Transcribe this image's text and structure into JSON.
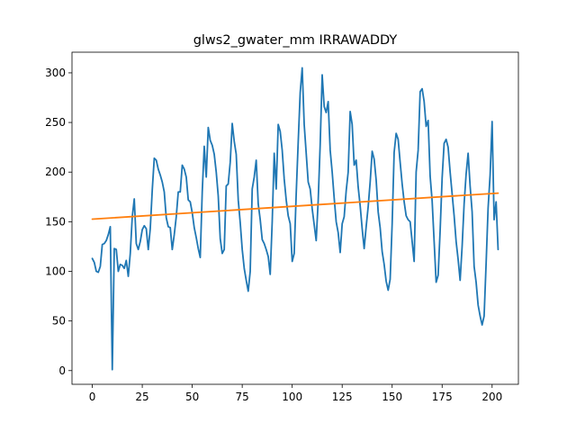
{
  "chart_data": {
    "type": "line",
    "title": "glws2_gwater_mm IRRAWADDY",
    "xlabel": "",
    "ylabel": "",
    "xlim": [
      -10.15,
      213.15
    ],
    "ylim": [
      -13.8,
      320.8
    ],
    "xticks": [
      0,
      25,
      50,
      75,
      100,
      125,
      150,
      175,
      200
    ],
    "yticks": [
      0,
      50,
      100,
      150,
      200,
      250,
      300
    ],
    "grid": false,
    "legend": "none",
    "series": [
      {
        "color": "#1f77b4",
        "x_start": 0,
        "values": [
          113,
          109,
          100,
          99,
          105,
          127,
          128,
          131,
          137,
          145,
          1,
          123,
          122,
          100,
          107,
          106,
          103,
          111,
          95,
          118,
          155,
          173,
          128,
          122,
          130,
          142,
          146,
          143,
          122,
          143,
          182,
          214,
          212,
          203,
          197,
          190,
          180,
          154,
          145,
          144,
          122,
          137,
          155,
          180,
          180,
          207,
          203,
          195,
          172,
          170,
          159,
          144,
          134,
          123,
          114,
          180,
          226,
          195,
          245,
          232,
          227,
          218,
          200,
          176,
          133,
          118,
          122,
          186,
          188,
          210,
          249,
          231,
          218,
          172,
          149,
          122,
          103,
          91,
          80,
          100,
          183,
          195,
          212,
          168,
          152,
          132,
          128,
          122,
          115,
          97,
          150,
          219,
          183,
          248,
          241,
          222,
          193,
          172,
          156,
          148,
          110,
          118,
          178,
          230,
          280,
          305,
          248,
          219,
          190,
          183,
          163,
          147,
          131,
          171,
          228,
          298,
          266,
          260,
          271,
          222,
          200,
          174,
          150,
          139,
          119,
          148,
          155,
          181,
          200,
          261,
          248,
          207,
          212,
          185,
          166,
          143,
          123,
          145,
          165,
          190,
          221,
          213,
          192,
          160,
          144,
          120,
          107,
          90,
          81,
          92,
          148,
          220,
          239,
          233,
          210,
          188,
          170,
          156,
          152,
          150,
          130,
          110,
          200,
          222,
          281,
          284,
          271,
          246,
          252,
          196,
          171,
          130,
          89,
          96,
          141,
          194,
          229,
          233,
          225,
          200,
          178,
          156,
          130,
          112,
          91,
          125,
          168,
          198,
          219,
          186,
          160,
          105,
          89,
          66,
          55,
          46,
          55,
          108,
          164,
          197,
          251,
          152,
          170,
          122
        ]
      },
      {
        "color": "#ff7f0e",
        "x_start": 0,
        "values": [
          152.6,
          178.8
        ]
      }
    ]
  }
}
